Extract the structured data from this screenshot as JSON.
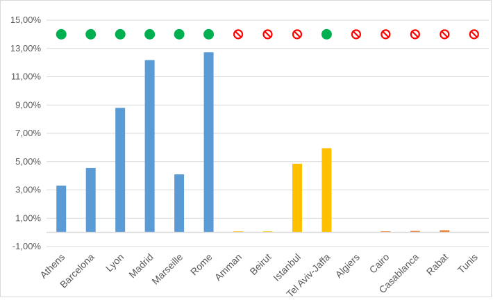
{
  "chart_data": {
    "type": "bar",
    "title": "",
    "xlabel": "",
    "ylabel": "",
    "categories": [
      "Athens",
      "Barcelona",
      "Lyon",
      "Madrid",
      "Marseille",
      "Rome",
      "Amman",
      "Beirut",
      "Istanbul",
      "Tel Aviv-Jaffa",
      "Algiers",
      "Cairo",
      "Casablanca",
      "Rabat",
      "Tunis"
    ],
    "values": [
      0.033,
      0.0455,
      0.088,
      0.1218,
      0.041,
      0.1273,
      0.0003,
      0.0002,
      0.0485,
      0.0595,
      0.0,
      0.0004,
      0.001,
      0.0015,
      0.0
    ],
    "bar_colors": [
      "#5b9bd5",
      "#5b9bd5",
      "#5b9bd5",
      "#5b9bd5",
      "#5b9bd5",
      "#5b9bd5",
      "#ffc000",
      "#ffc000",
      "#ffc000",
      "#ffc000",
      "#ed7d31",
      "#ed7d31",
      "#ed7d31",
      "#ed7d31",
      "#ed7d31"
    ],
    "status_markers": [
      "yes",
      "yes",
      "yes",
      "yes",
      "yes",
      "yes",
      "no",
      "no",
      "no",
      "yes",
      "no",
      "no",
      "no",
      "no",
      "no"
    ],
    "status_marker_icons": {
      "yes": "green-circle-icon",
      "no": "red-prohibited-icon"
    },
    "status_marker_value": 0.14,
    "ylim": [
      -0.01,
      0.15
    ],
    "yticks": [
      -0.01,
      0.01,
      0.03,
      0.05,
      0.07,
      0.09,
      0.11,
      0.13,
      0.15
    ],
    "ytick_labels": [
      "-1,00%",
      "1,00%",
      "3,00%",
      "5,00%",
      "7,00%",
      "9,00%",
      "11,00%",
      "13,00%",
      "15,00%"
    ],
    "grid": true,
    "legend": "none",
    "colors": {
      "grid": "#d9d9d9",
      "zero_line": "#d9d9d9",
      "marker_yes": "#00b050",
      "marker_no": "#ff0000",
      "text": "#595959"
    }
  }
}
